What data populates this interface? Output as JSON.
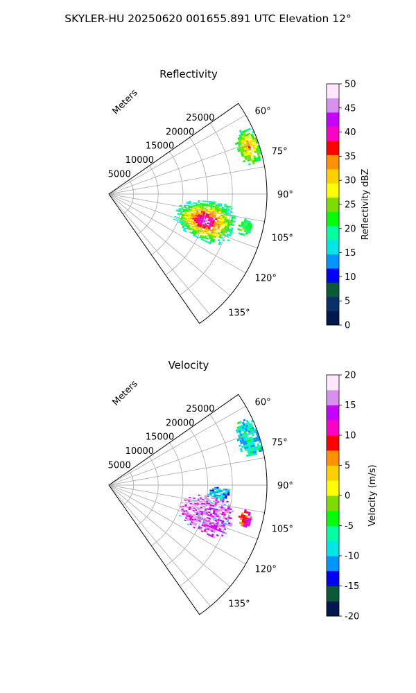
{
  "figure": {
    "suptitle": "SKYLER-HU  20250620  001655.891 UTC Elevation 12°"
  },
  "chart_data": [
    {
      "type": "heatmap",
      "subtype": "polar-sector-ppi",
      "title": "Reflectivity",
      "range_label": "Meters",
      "range_ticks": [
        5000,
        10000,
        15000,
        20000,
        25000
      ],
      "range_max": 32000,
      "azimuth_range_deg": [
        55,
        145
      ],
      "azimuth_ticks": [
        "60°",
        "75°",
        "90°",
        "105°",
        "120°",
        "135°"
      ],
      "azimuth_tick_values": [
        60,
        75,
        90,
        105,
        120,
        135
      ],
      "grid": true,
      "colorbar": {
        "label": "Reflectivity dBZ",
        "ticks": [
          "0",
          "5",
          "10",
          "15",
          "20",
          "25",
          "30",
          "35",
          "40",
          "45",
          "50"
        ],
        "range": [
          0,
          50
        ],
        "colors": [
          "#00184d",
          "#08306b",
          "#0a5a3a",
          "#0000ff",
          "#0096ff",
          "#00e6e6",
          "#00ffa0",
          "#00ff00",
          "#7fdc00",
          "#ffff00",
          "#ffd000",
          "#ff9000",
          "#ff0000",
          "#ff00c8",
          "#c800ff",
          "#d890f0",
          "#ffe6ff"
        ]
      },
      "echo_regions": [
        {
          "region": "main",
          "range_m": [
            14000,
            26000
          ],
          "azimuth_deg": [
            94,
            116
          ],
          "peak_dbz": 45,
          "edge_dbz": 18
        },
        {
          "region": "northeast-edge",
          "range_m": [
            27500,
            32000
          ],
          "azimuth_deg": [
            64,
            78
          ],
          "peak_dbz": 35,
          "edge_dbz": 20
        },
        {
          "region": "southeast-streak",
          "range_m": [
            27000,
            29500
          ],
          "azimuth_deg": [
            100,
            107
          ],
          "peak_dbz": 22,
          "edge_dbz": 22
        }
      ]
    },
    {
      "type": "heatmap",
      "subtype": "polar-sector-ppi",
      "title": "Velocity",
      "range_label": "Meters",
      "range_ticks": [
        5000,
        10000,
        15000,
        20000,
        25000
      ],
      "range_max": 32000,
      "azimuth_range_deg": [
        55,
        145
      ],
      "azimuth_ticks": [
        "60°",
        "75°",
        "90°",
        "105°",
        "120°",
        "135°"
      ],
      "azimuth_tick_values": [
        60,
        75,
        90,
        105,
        120,
        135
      ],
      "grid": true,
      "colorbar": {
        "label": "Velocity (m/s)",
        "ticks": [
          "-20",
          "-15",
          "-10",
          "-5",
          "0",
          "5",
          "10",
          "15",
          "20"
        ],
        "range": [
          -20,
          20
        ],
        "colors": [
          "#00184d",
          "#0a5a3a",
          "#0000ff",
          "#0096ff",
          "#00e6e6",
          "#00ffa0",
          "#00ff00",
          "#7fdc00",
          "#ffff00",
          "#ffd000",
          "#ff9000",
          "#ff0000",
          "#ff00c8",
          "#c800ff",
          "#d890f0",
          "#ffe6ff"
        ]
      },
      "echo_regions": [
        {
          "region": "main",
          "range_m": [
            15000,
            26000
          ],
          "azimuth_deg": [
            96,
            116
          ],
          "dominant_mps": 16
        },
        {
          "region": "main-top",
          "range_m": [
            20000,
            24500
          ],
          "azimuth_deg": [
            91,
            97
          ],
          "dominant_mps": -10
        },
        {
          "region": "northeast-edge",
          "range_m": [
            27500,
            32000
          ],
          "azimuth_deg": [
            64,
            78
          ],
          "dominant_mps": -8
        },
        {
          "region": "southeast-streak",
          "range_m": [
            27000,
            29500
          ],
          "azimuth_deg": [
            100,
            107
          ],
          "dominant_mps": 10
        }
      ]
    }
  ]
}
